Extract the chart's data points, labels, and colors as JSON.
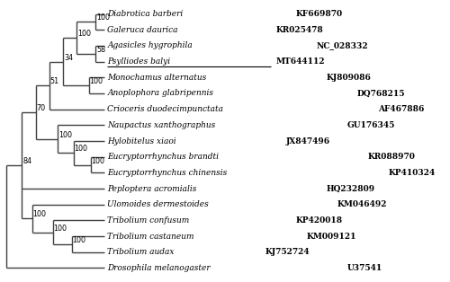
{
  "taxa": [
    {
      "name": "Diabrotica barberi",
      "accession": "KF669870",
      "y": 16,
      "underline": false
    },
    {
      "name": "Galeruca daurica",
      "accession": "KR025478",
      "y": 15,
      "underline": false
    },
    {
      "name": "Agasicles hygrophila",
      "accession": "NC_028332",
      "y": 14,
      "underline": false
    },
    {
      "name": "Psylliodes balyi",
      "accession": "MT644112",
      "y": 13,
      "underline": true
    },
    {
      "name": "Monochamus alternatus",
      "accession": "KJ809086",
      "y": 12,
      "underline": false
    },
    {
      "name": "Anoplophora glabripennis",
      "accession": "DQ768215",
      "y": 11,
      "underline": false
    },
    {
      "name": "Crioceris duodecimpunctata",
      "accession": "AF467886",
      "y": 10,
      "underline": false
    },
    {
      "name": "Naupactus xanthographus",
      "accession": "GU176345",
      "y": 9,
      "underline": false
    },
    {
      "name": "Hylobitelus xiaoi",
      "accession": "JX847496",
      "y": 8,
      "underline": false
    },
    {
      "name": "Eucryptorrhynchus brandti",
      "accession": "KR088970",
      "y": 7,
      "underline": false
    },
    {
      "name": "Eucryptorrhynchus chinensis",
      "accession": "KP410324",
      "y": 6,
      "underline": false
    },
    {
      "name": "Peploptera acromialis",
      "accession": "HQ232809",
      "y": 5,
      "underline": false
    },
    {
      "name": "Ulomoides dermestoides",
      "accession": "KM046492",
      "y": 4,
      "underline": false
    },
    {
      "name": "Tribolium confusum",
      "accession": "KP420018",
      "y": 3,
      "underline": false
    },
    {
      "name": "Tribolium castaneum",
      "accession": "KM009121",
      "y": 2,
      "underline": false
    },
    {
      "name": "Tribolium audax",
      "accession": "KJ752724",
      "y": 1,
      "underline": false
    },
    {
      "name": "Drosophila melanogaster",
      "accession": "U37541",
      "y": 0,
      "underline": false
    }
  ],
  "line_color": "#404040",
  "text_color": "#000000",
  "bg_color": "#ffffff",
  "lw": 1.0,
  "xR": 0.3,
  "x84": 1.2,
  "x70": 2.0,
  "x51": 2.8,
  "x34": 3.6,
  "xB": 4.4,
  "xDG": 5.5,
  "x58": 5.5,
  "xMA": 5.1,
  "xCUR": 3.3,
  "xHYL": 4.2,
  "xEUC": 5.2,
  "xLOW": 1.8,
  "xTRI": 3.0,
  "xTRI2": 4.1,
  "XT": 6.0,
  "xlim_lo": 0.0,
  "xlim_hi": 17.5,
  "ylim_lo": -0.8,
  "ylim_hi": 16.8,
  "fs_species": 6.5,
  "fs_acc": 6.5,
  "fs_boot": 5.8
}
